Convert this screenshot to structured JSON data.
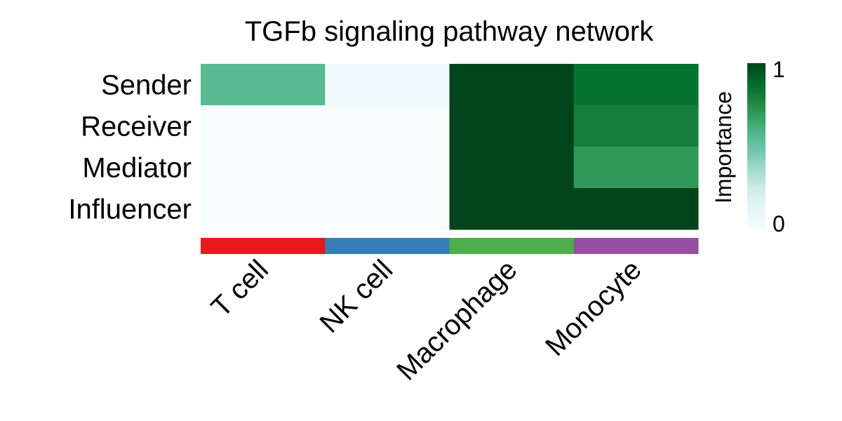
{
  "chart_data": {
    "type": "heatmap",
    "title": "TGFb signaling pathway network",
    "rows": [
      "Sender",
      "Receiver",
      "Mediator",
      "Influencer"
    ],
    "columns": [
      "T cell",
      "NK cell",
      "Macrophage",
      "Monocyte"
    ],
    "values": [
      [
        0.55,
        0.05,
        1.0,
        0.85
      ],
      [
        0.0,
        0.0,
        1.0,
        0.8
      ],
      [
        0.0,
        0.0,
        1.0,
        0.7
      ],
      [
        0.0,
        0.0,
        1.0,
        1.0
      ]
    ],
    "group_colors": [
      "#e41a1c",
      "#377eb8",
      "#4daf4a",
      "#984ea3"
    ],
    "colorbar": {
      "label": "Importance",
      "min": 0,
      "max": 1,
      "min_label": "0",
      "max_label": "1",
      "colors": [
        "#f7fcfd",
        "#e5f5f9",
        "#ccece6",
        "#99d8c9",
        "#66c2a4",
        "#41ae76",
        "#238b45",
        "#006d2c",
        "#00441b"
      ]
    }
  }
}
